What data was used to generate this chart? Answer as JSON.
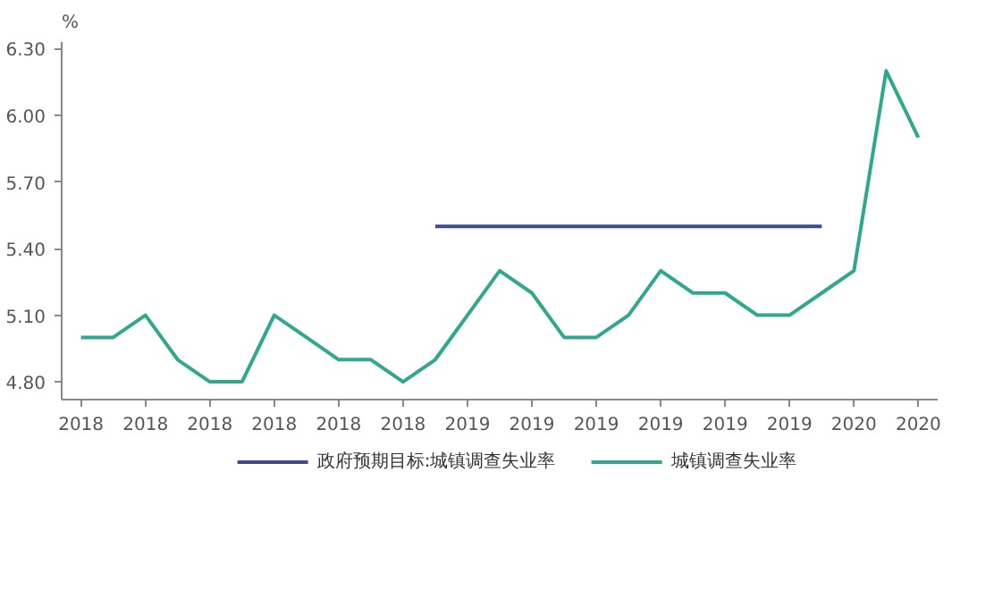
{
  "chart_data": {
    "type": "line",
    "ylabel": "%",
    "categories": [
      "2018",
      null,
      "2018",
      null,
      "2018",
      null,
      "2018",
      null,
      "2018",
      null,
      "2018",
      null,
      "2019",
      null,
      "2019",
      null,
      "2019",
      null,
      "2019",
      null,
      "2019",
      null,
      "2019",
      null,
      "2020",
      null,
      "2020"
    ],
    "series": [
      {
        "name": "政府预期目标:城镇调查失业率",
        "color": "#3f4a94",
        "values": [
          null,
          null,
          null,
          null,
          null,
          null,
          null,
          null,
          null,
          null,
          null,
          5.5,
          5.5,
          5.5,
          5.5,
          5.5,
          5.5,
          5.5,
          5.5,
          5.5,
          5.5,
          5.5,
          5.5,
          5.5,
          null,
          null,
          null
        ]
      },
      {
        "name": "城镇调查失业率",
        "color": "#2fa88e",
        "values": [
          5.0,
          5.0,
          5.1,
          4.9,
          4.8,
          4.8,
          5.1,
          5.0,
          4.9,
          4.9,
          4.8,
          4.9,
          5.1,
          5.3,
          5.2,
          5.0,
          5.0,
          5.1,
          5.3,
          5.2,
          5.2,
          5.1,
          5.1,
          5.2,
          5.3,
          6.2,
          5.9
        ]
      }
    ],
    "ylim": [
      4.72,
      6.33
    ],
    "yticks": [
      {
        "value": 4.8,
        "label": "4.80"
      },
      {
        "value": 5.1,
        "label": "5.10"
      },
      {
        "value": 5.4,
        "label": "5.40"
      },
      {
        "value": 5.7,
        "label": "5.70"
      },
      {
        "value": 6.0,
        "label": "6.00"
      },
      {
        "value": 6.3,
        "label": "6.30"
      }
    ],
    "grid": false,
    "legend": "bottom",
    "line_style": "solid",
    "marker": "none"
  }
}
